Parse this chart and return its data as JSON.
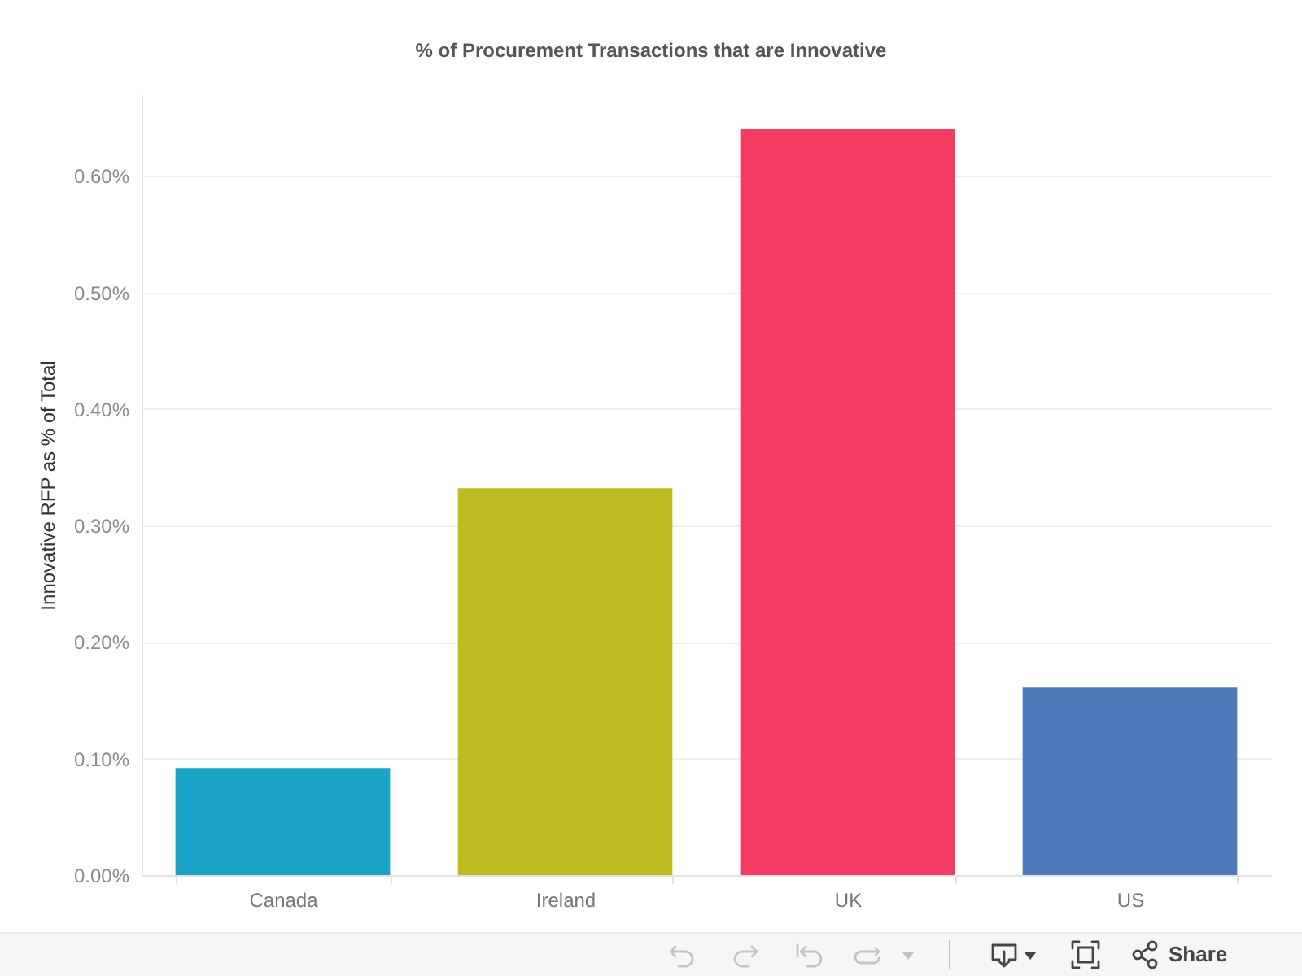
{
  "chart_data": {
    "type": "bar",
    "title": "% of Procurement Transactions that are Innovative",
    "ylabel": "Innovative RFP as % of Total",
    "categories": [
      "Canada",
      "Ireland",
      "UK",
      "US"
    ],
    "values": [
      0.092,
      0.332,
      0.64,
      0.161
    ],
    "colors": [
      "#1ba3c6",
      "#bdbd22",
      "#f43b62",
      "#4e7cbb"
    ],
    "ylim": [
      0,
      0.67
    ],
    "yticks": [
      {
        "value": 0,
        "label": "0.00%"
      },
      {
        "value": 0.1,
        "label": "0.10%"
      },
      {
        "value": 0.2,
        "label": "0.20%"
      },
      {
        "value": 0.3,
        "label": "0.30%"
      },
      {
        "value": 0.4,
        "label": "0.40%"
      },
      {
        "value": 0.5,
        "label": "0.50%"
      },
      {
        "value": 0.6,
        "label": "0.60%"
      }
    ],
    "grid": "y",
    "annotations": [
      "Share"
    ]
  }
}
